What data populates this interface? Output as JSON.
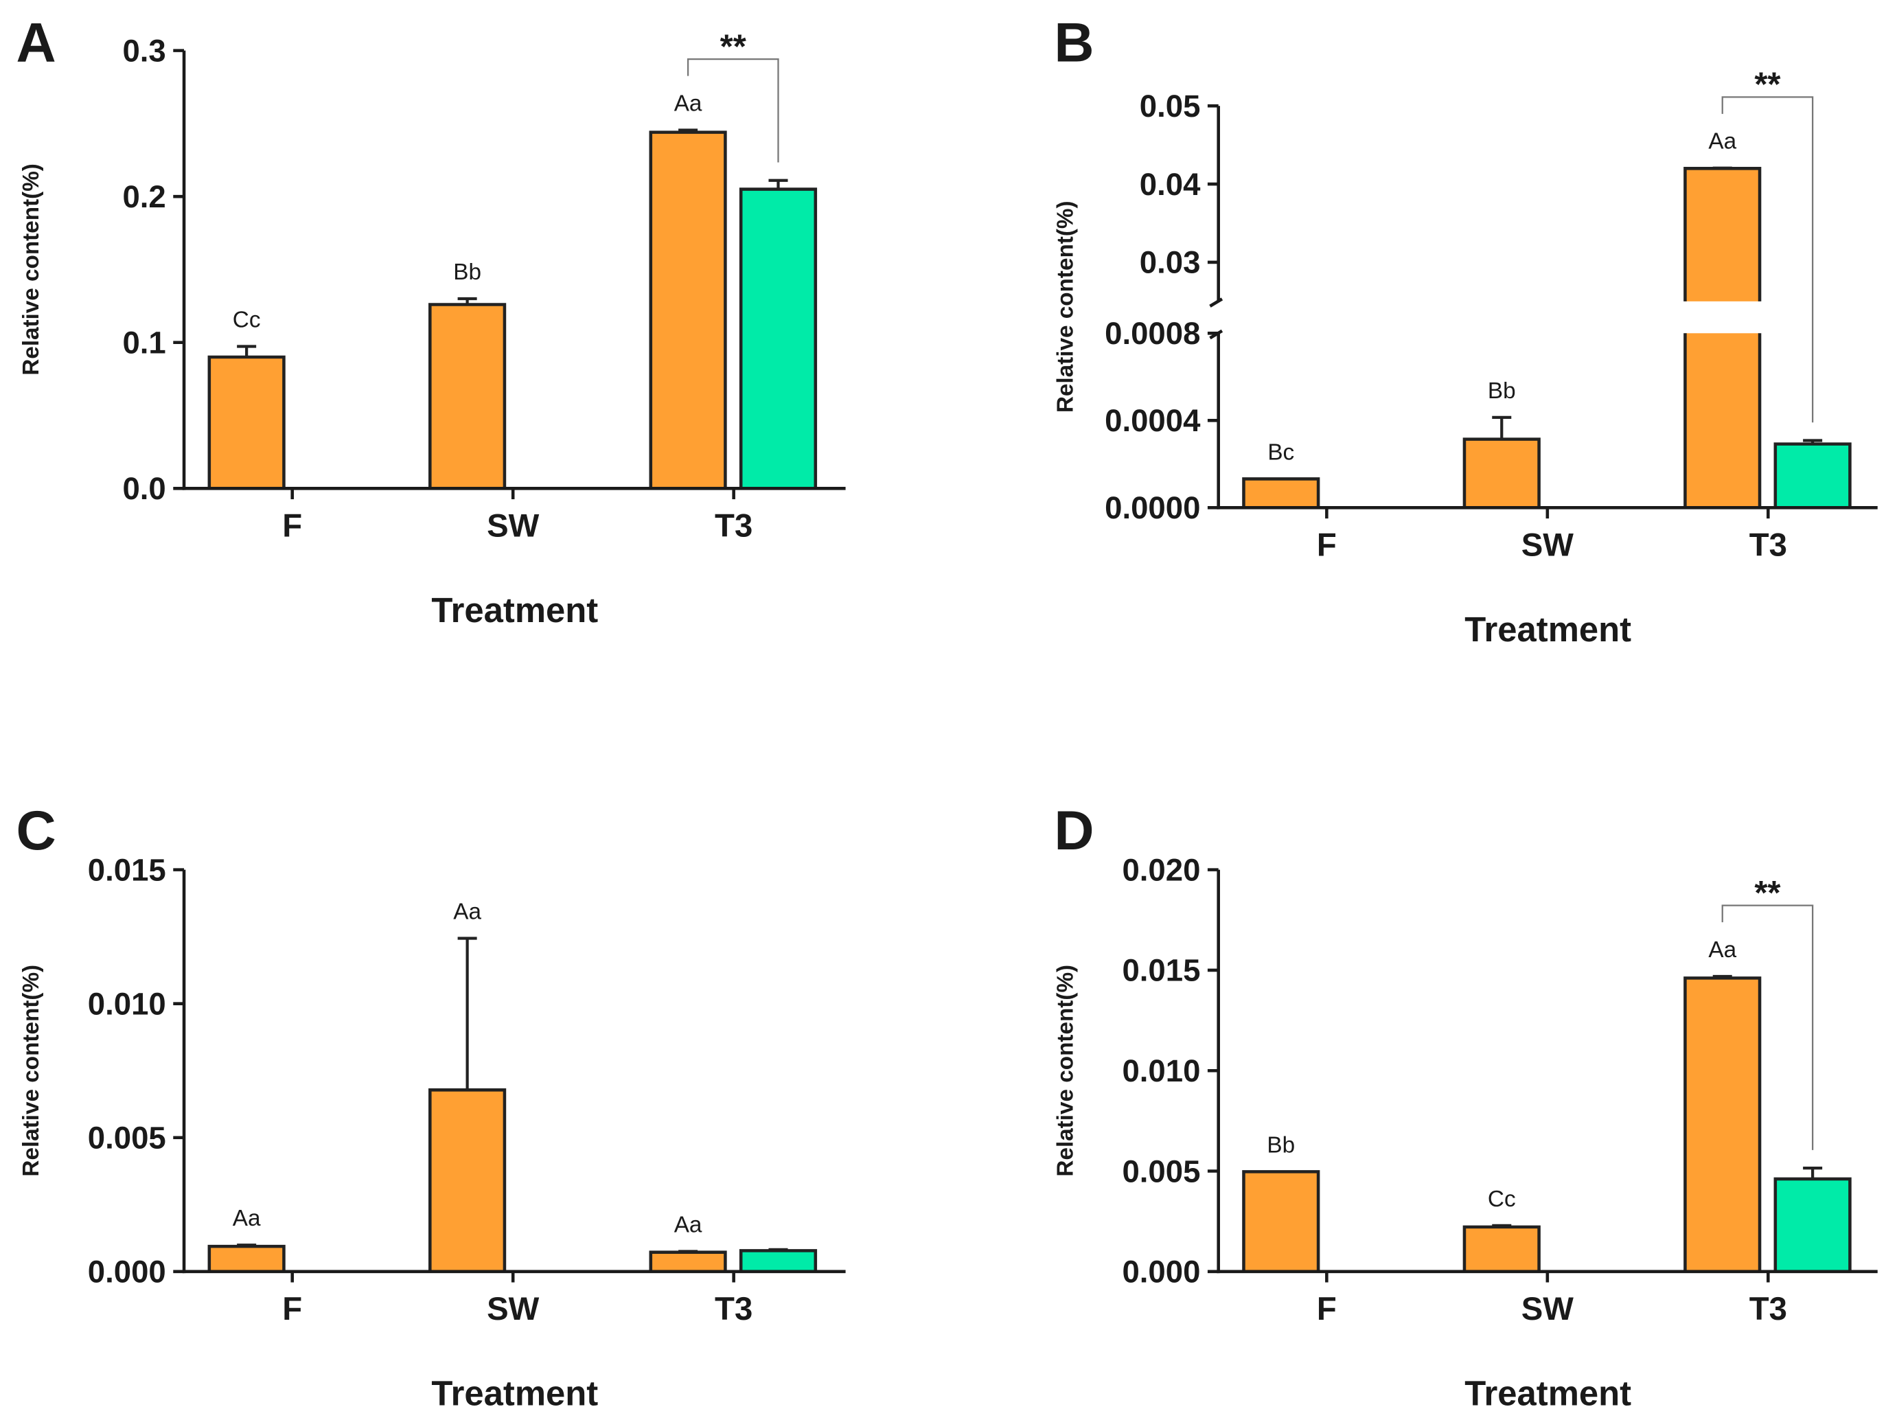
{
  "chart_data": [
    {
      "panel": "A",
      "type": "bar",
      "xlabel": "Treatment",
      "ylabel": "Relative content(%)",
      "categories": [
        "F",
        "SW",
        "T3"
      ],
      "ysegments": [
        {
          "ylim": [
            0,
            0.3
          ],
          "yticks": [
            {
              "value": 0,
              "label": "0.0"
            },
            {
              "value": 0.1,
              "label": "0.1"
            },
            {
              "value": 0.2,
              "label": "0.2"
            },
            {
              "value": 0.3,
              "label": "0.3"
            }
          ]
        }
      ],
      "series": [
        {
          "color": "#FFA033",
          "values": [
            0.09,
            0.126,
            0.244
          ],
          "errors": [
            0.0073,
            0.004,
            0.0015
          ]
        },
        {
          "color": "#00EBA8",
          "values": [
            null,
            null,
            0.205
          ],
          "errors": [
            null,
            null,
            0.006
          ]
        }
      ],
      "annotations": [
        {
          "category": "F",
          "series": 0,
          "text": "Cc"
        },
        {
          "category": "SW",
          "series": 0,
          "text": "Bb"
        },
        {
          "category": "T3",
          "series": 0,
          "text": "Aa"
        }
      ],
      "significance": [
        {
          "category": "T3",
          "text": "**"
        }
      ]
    },
    {
      "panel": "B",
      "type": "bar",
      "xlabel": "Treatment",
      "ylabel": "Relative content(%)",
      "categories": [
        "F",
        "SW",
        "T3"
      ],
      "ysegments": [
        {
          "ylim": [
            0,
            0.0008
          ],
          "yticks": [
            {
              "value": 0,
              "label": "0.0000"
            },
            {
              "value": 0.0004,
              "label": "0.0004"
            },
            {
              "value": 0.0008,
              "label": "0.0008"
            }
          ]
        },
        {
          "ylim": [
            0.025,
            0.05
          ],
          "yticks": [
            {
              "value": 0.03,
              "label": "0.03"
            },
            {
              "value": 0.04,
              "label": "0.04"
            },
            {
              "value": 0.05,
              "label": "0.05"
            }
          ]
        }
      ],
      "series": [
        {
          "color": "#FFA033",
          "values": [
            0.000132,
            0.000314,
            0.042
          ],
          "errors": [
            0,
            0.0001,
            5e-05
          ]
        },
        {
          "color": "#00EBA8",
          "values": [
            null,
            null,
            0.000292
          ],
          "errors": [
            null,
            null,
            1.6e-05
          ]
        }
      ],
      "annotations": [
        {
          "category": "F",
          "series": 0,
          "text": "Bc"
        },
        {
          "category": "SW",
          "series": 0,
          "text": "Bb"
        },
        {
          "category": "T3",
          "series": 0,
          "text": "Aa"
        }
      ],
      "significance": [
        {
          "category": "T3",
          "text": "**"
        }
      ]
    },
    {
      "panel": "C",
      "type": "bar",
      "xlabel": "Treatment",
      "ylabel": "Relative content(%)",
      "categories": [
        "F",
        "SW",
        "T3"
      ],
      "ysegments": [
        {
          "ylim": [
            0,
            0.015
          ],
          "yticks": [
            {
              "value": 0,
              "label": "0.000"
            },
            {
              "value": 0.005,
              "label": "0.005"
            },
            {
              "value": 0.01,
              "label": "0.010"
            },
            {
              "value": 0.015,
              "label": "0.015"
            }
          ]
        }
      ],
      "series": [
        {
          "color": "#FFA033",
          "values": [
            0.00094,
            0.00678,
            0.00072
          ],
          "errors": [
            5e-05,
            0.00566,
            3e-05
          ]
        },
        {
          "color": "#00EBA8",
          "values": [
            null,
            null,
            0.00078
          ],
          "errors": [
            null,
            null,
            4e-05
          ]
        }
      ],
      "annotations": [
        {
          "category": "F",
          "series": 0,
          "text": "Aa"
        },
        {
          "category": "SW",
          "series": 0,
          "text": "Aa"
        },
        {
          "category": "T3",
          "series": 0,
          "text": "Aa"
        }
      ],
      "significance": []
    },
    {
      "panel": "D",
      "type": "bar",
      "xlabel": "Treatment",
      "ylabel": "Relative content(%)",
      "categories": [
        "F",
        "SW",
        "T3"
      ],
      "ysegments": [
        {
          "ylim": [
            0,
            0.02
          ],
          "yticks": [
            {
              "value": 0,
              "label": "0.000"
            },
            {
              "value": 0.005,
              "label": "0.005"
            },
            {
              "value": 0.01,
              "label": "0.010"
            },
            {
              "value": 0.015,
              "label": "0.015"
            },
            {
              "value": 0.02,
              "label": "0.020"
            }
          ]
        }
      ],
      "series": [
        {
          "color": "#FFA033",
          "values": [
            0.00497,
            0.00222,
            0.01461
          ],
          "errors": [
            0,
            7e-05,
            8e-05
          ]
        },
        {
          "color": "#00EBA8",
          "values": [
            null,
            null,
            0.00461
          ],
          "errors": [
            null,
            null,
            0.00054
          ]
        }
      ],
      "annotations": [
        {
          "category": "F",
          "series": 0,
          "text": "Bb"
        },
        {
          "category": "SW",
          "series": 0,
          "text": "Cc"
        },
        {
          "category": "T3",
          "series": 0,
          "text": "Aa"
        }
      ],
      "significance": [
        {
          "category": "T3",
          "text": "**"
        }
      ]
    }
  ]
}
